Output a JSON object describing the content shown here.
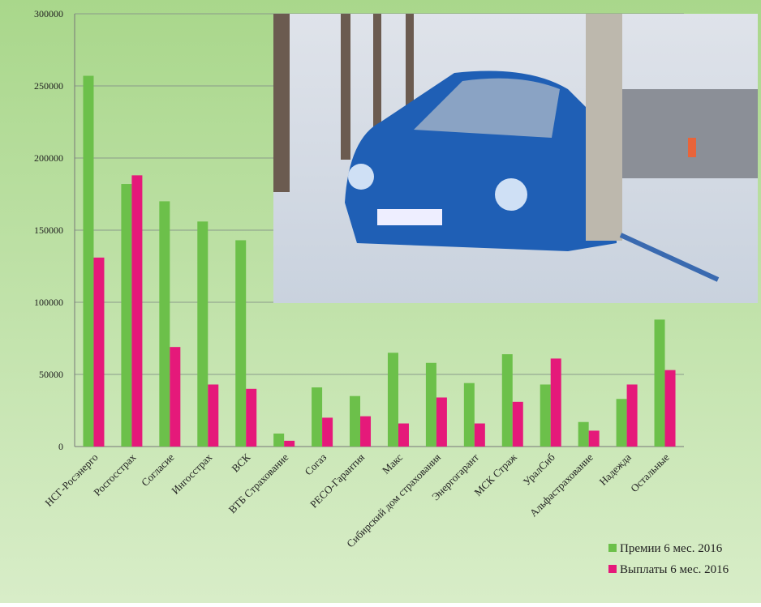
{
  "chart_data": {
    "type": "bar",
    "categories": [
      "НСГ-Росэнерго",
      "Росгосстрах",
      "Согласие",
      "Ингосстрах",
      "ВСК",
      "ВТБ Страхование",
      "Согаз",
      "РЕСО-Гарантия",
      "Макс",
      "Сибирский дом страхования",
      "Энергогарант",
      "МСК Страж",
      "УралСиб",
      "Альфастрахование",
      "Надежда",
      "Остальные"
    ],
    "series": [
      {
        "name": "Премии 6 мес. 2016",
        "color": "#6cc04a",
        "values": [
          257000,
          182000,
          170000,
          156000,
          143000,
          9000,
          41000,
          35000,
          65000,
          58000,
          44000,
          64000,
          43000,
          17000,
          33000,
          88000
        ]
      },
      {
        "name": "Выплаты 6 мес. 2016",
        "color": "#e5197a",
        "values": [
          131000,
          188000,
          69000,
          43000,
          40000,
          4000,
          20000,
          21000,
          16000,
          34000,
          16000,
          31000,
          61000,
          11000,
          43000,
          53000
        ]
      }
    ],
    "ylim": [
      0,
      300000
    ],
    "yticks": [
      0,
      50000,
      100000,
      150000,
      200000,
      250000,
      300000
    ],
    "grid": true,
    "legend": "bottom-right"
  }
}
